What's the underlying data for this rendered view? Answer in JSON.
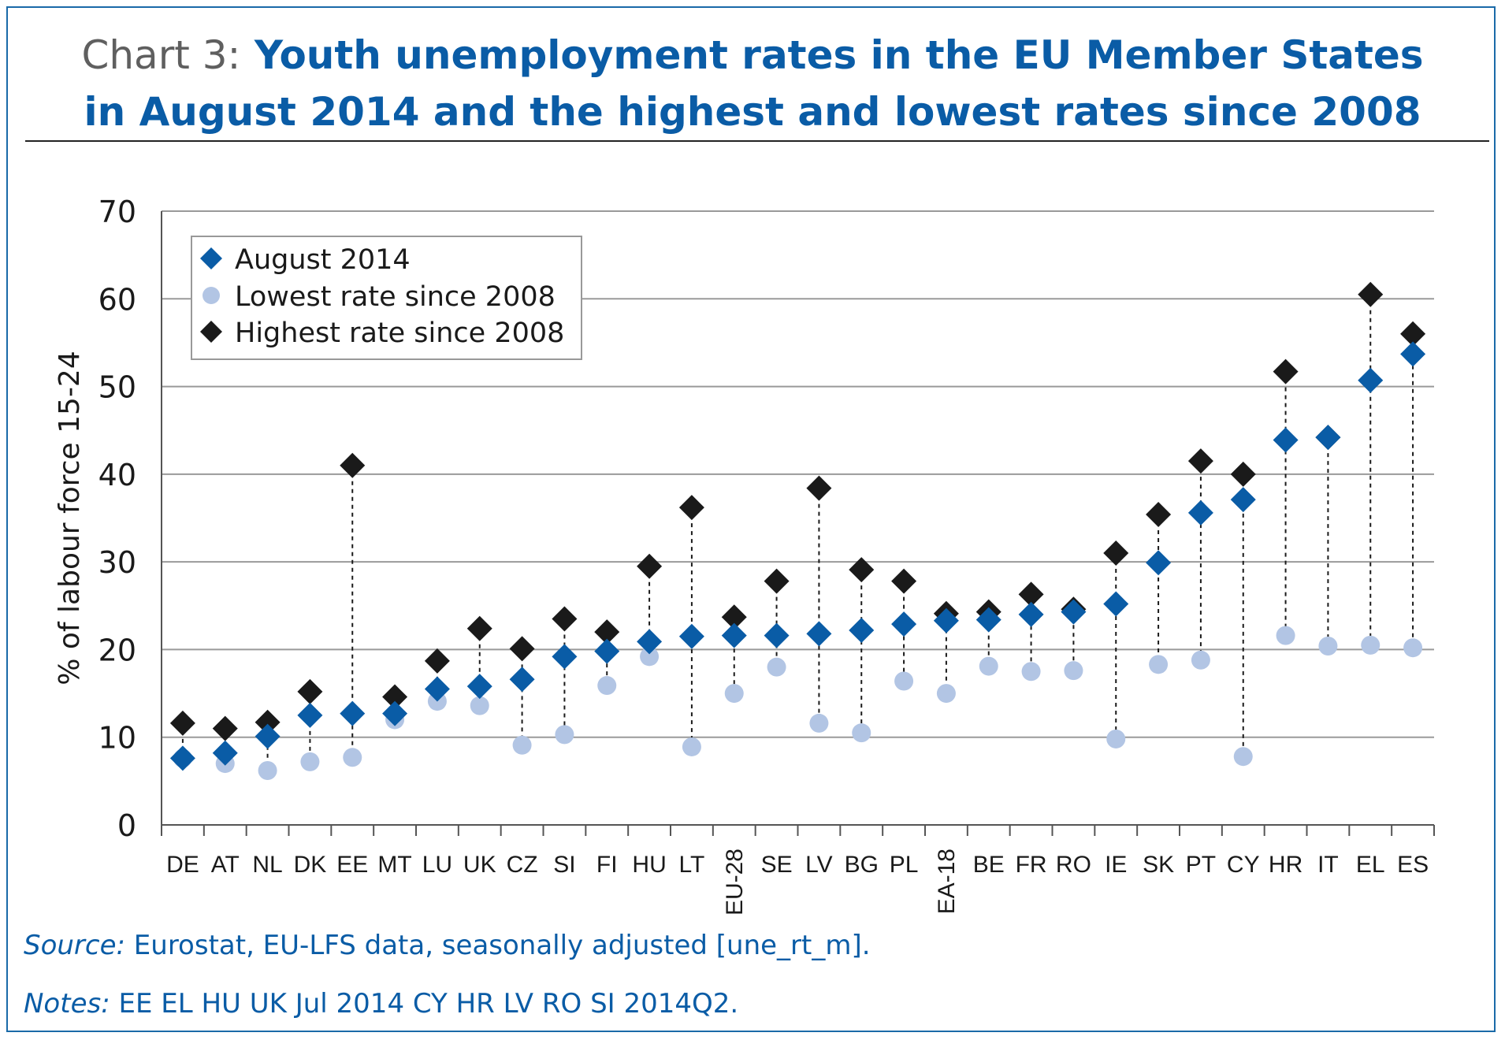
{
  "title": {
    "prefix": "Chart 3:",
    "line1": "Youth unemployment rates in the EU Member States",
    "line2": "in August 2014 and the highest and lowest rates since 2008"
  },
  "source": {
    "label": "Source:",
    "text": " Eurostat, EU-LFS data, seasonally adjusted [une_rt_m]."
  },
  "notes": {
    "label": "Notes:",
    "text": " EE EL HU UK Jul 2014 CY HR LV RO SI 2014Q2."
  },
  "colors": {
    "august": "#0a5ca6",
    "lowest": "#b2c5e4",
    "highest": "#1a1a1a"
  },
  "chart_data": {
    "type": "scatter",
    "title": "Youth unemployment rates in the EU Member States in August 2014 and the highest and lowest rates since 2008",
    "ylabel": "% of labour force 15-24",
    "xlabel": "",
    "ylim": [
      0,
      70
    ],
    "yticks": [
      0,
      10,
      20,
      30,
      40,
      50,
      60,
      70
    ],
    "grid": "horizontal",
    "legend_position": "top-left",
    "categories": [
      "DE",
      "AT",
      "NL",
      "DK",
      "EE",
      "MT",
      "LU",
      "UK",
      "CZ",
      "SI",
      "FI",
      "HU",
      "LT",
      "EU-28",
      "SE",
      "LV",
      "BG",
      "PL",
      "EA-18",
      "BE",
      "FR",
      "RO",
      "IE",
      "SK",
      "PT",
      "CY",
      "HR",
      "IT",
      "EL",
      "ES"
    ],
    "series": [
      {
        "name": "August 2014",
        "marker": "diamond",
        "values": [
          7.6,
          8.2,
          10.1,
          12.5,
          12.7,
          12.7,
          15.5,
          15.8,
          16.6,
          19.2,
          19.8,
          20.9,
          21.5,
          21.6,
          21.6,
          21.8,
          22.2,
          22.9,
          23.3,
          23.4,
          24.0,
          24.3,
          25.2,
          29.9,
          35.6,
          37.1,
          43.9,
          44.2,
          50.7,
          53.7
        ]
      },
      {
        "name": "Lowest rate since 2008",
        "marker": "circle",
        "values": [
          7.6,
          7.0,
          6.2,
          7.2,
          7.7,
          12.0,
          14.1,
          13.6,
          9.1,
          10.3,
          15.9,
          19.2,
          8.9,
          15.0,
          18.0,
          11.6,
          10.5,
          16.4,
          15.0,
          18.1,
          17.5,
          17.6,
          9.8,
          18.3,
          18.8,
          7.8,
          21.6,
          20.4,
          20.5,
          20.2
        ]
      },
      {
        "name": "Highest rate since 2008",
        "marker": "diamond",
        "values": [
          11.6,
          11.0,
          11.7,
          15.2,
          41.0,
          14.6,
          18.7,
          22.4,
          20.1,
          23.5,
          22.0,
          29.5,
          36.2,
          23.7,
          27.8,
          38.4,
          29.1,
          27.8,
          24.1,
          24.3,
          26.3,
          24.6,
          31.0,
          35.4,
          41.5,
          40.0,
          51.7,
          44.2,
          60.5,
          56.0
        ]
      }
    ],
    "legend": [
      "August 2014",
      "Lowest rate since 2008",
      "Highest rate since 2008"
    ],
    "rotated_tick_labels": [
      "EU-28",
      "EA-18"
    ]
  }
}
